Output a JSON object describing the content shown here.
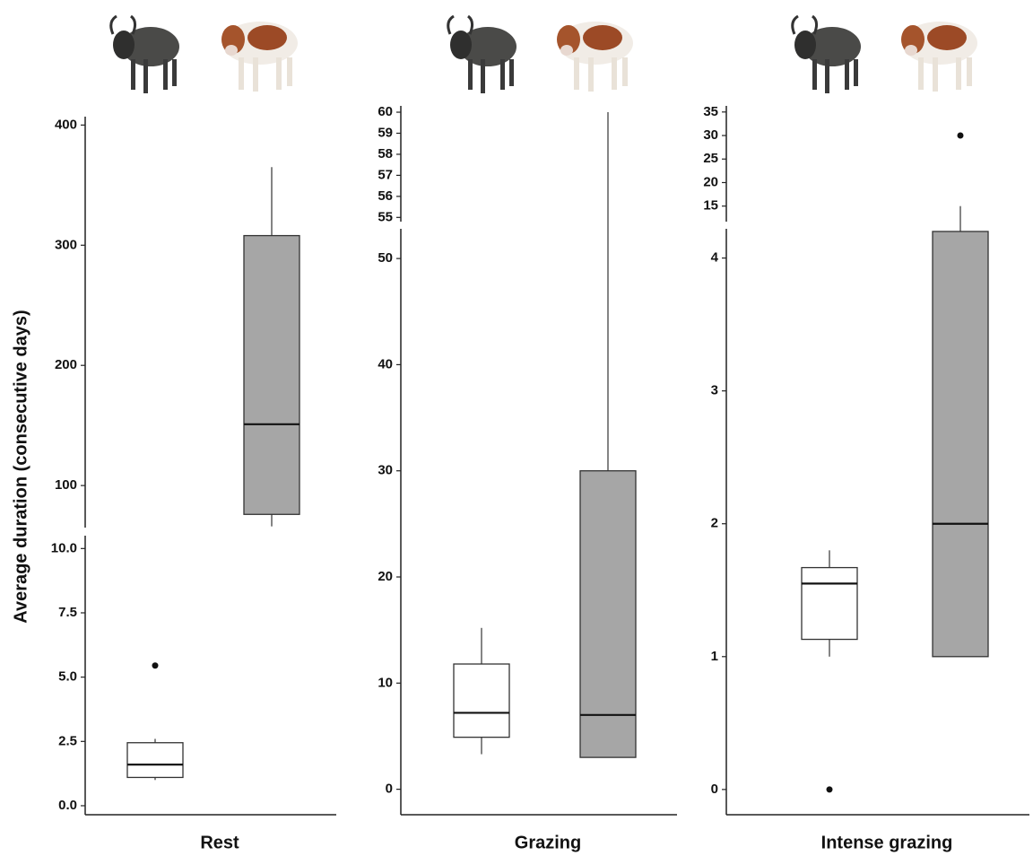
{
  "chart_data": [
    {
      "type": "box",
      "xlabel": "Rest",
      "ylabel": "Average duration (consecutive days)",
      "segments": [
        {
          "ylim": [
            -0.35,
            10.5
          ],
          "yticks": [
            {
              "value": 0,
              "label": "0.0"
            },
            2.5,
            {
              "value": 5,
              "label": "5.0"
            },
            7.5,
            {
              "value": 10,
              "label": "10.0"
            }
          ]
        },
        {
          "ylim": [
            65,
            407
          ],
          "yticks": [
            100,
            200,
            300,
            400
          ]
        }
      ],
      "series": [
        {
          "color": "#ffffff",
          "min": 1.0,
          "q1": 1.1,
          "median": 1.6,
          "q3": 2.45,
          "max": 2.6,
          "outliers": [
            5.45
          ]
        },
        {
          "color": "#a6a6a6",
          "min": 66,
          "q1": 76,
          "median": 151,
          "q3": 308,
          "max": 365,
          "outliers": []
        }
      ]
    },
    {
      "type": "box",
      "xlabel": "Grazing",
      "segments": [
        {
          "ylim": [
            -2.4,
            52.8
          ],
          "yticks": [
            0,
            10,
            20,
            30,
            40,
            50
          ]
        },
        {
          "ylim": [
            54.8,
            60.3
          ],
          "yticks": [
            55,
            56,
            57,
            58,
            59,
            60
          ]
        }
      ],
      "series": [
        {
          "color": "#ffffff",
          "min": 3.3,
          "q1": 4.9,
          "median": 7.2,
          "q3": 11.8,
          "max": 15.2,
          "outliers": []
        },
        {
          "color": "#a6a6a6",
          "min": 3,
          "q1": 3,
          "median": 7,
          "q3": 30,
          "max": 60,
          "outliers": []
        }
      ]
    },
    {
      "type": "box",
      "xlabel": "Intense grazing",
      "segments": [
        {
          "ylim": [
            -0.19,
            4.22
          ],
          "yticks": [
            0,
            1,
            2,
            3,
            4
          ]
        },
        {
          "ylim": [
            11.7,
            36.3
          ],
          "yticks": [
            15,
            20,
            25,
            30,
            35
          ]
        }
      ],
      "series": [
        {
          "color": "#ffffff",
          "min": 1.0,
          "q1": 1.13,
          "median": 1.55,
          "q3": 1.67,
          "max": 1.8,
          "outliers": [
            0
          ]
        },
        {
          "color": "#a6a6a6",
          "min": 1,
          "q1": 1,
          "median": 2,
          "q3": 4.2,
          "max": 15,
          "outliers": [
            30
          ]
        }
      ]
    }
  ]
}
